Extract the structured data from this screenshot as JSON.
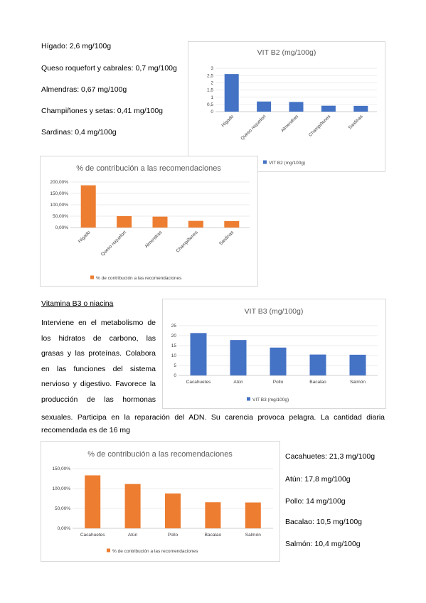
{
  "b2_values": [
    "Hígado: 2,6 mg/100g",
    "Queso roquefort y cabrales: 0,7 mg/100g",
    "Almendras: 0,67 mg/100g",
    "Champiñones y setas: 0,41 mg/100g",
    "Sardinas: 0,4 mg/100g"
  ],
  "b3_heading": "Vitamina B3 o niacina",
  "b3_para1_lines": [
    "Interviene en el metabolismo de",
    "los hidratos de carbono, las",
    "grasas y las proteínas. Colabora",
    "en las funciones del sistema",
    "nervioso y digestivo. Favorece la",
    "producción de las hormonas"
  ],
  "b3_para2_line1": "sexuales. Participa en la reparación del ADN. Su carencia provoca pelagra. La cantidad diaria",
  "b3_para2_line2": "recomendada es de 16 mg",
  "b3_values": [
    "Cacahuetes: 21,3 mg/100g",
    "Atún: 17,8 mg/100g",
    "Pollo: 14 mg/100g",
    "Bacalao: 10,5 mg/100g",
    "Salmón: 10,4 mg/100g"
  ],
  "chart_data": [
    {
      "type": "bar",
      "title": "VIT B2 (mg/100g)",
      "categories": [
        "Hígado",
        "Queso roquefort",
        "Almendras",
        "Champiñones",
        "Sardinas"
      ],
      "series": [
        {
          "name": "VIT B2 (mg/100g)",
          "values": [
            2.6,
            0.7,
            0.67,
            0.41,
            0.4
          ]
        }
      ],
      "ylim": [
        0,
        3
      ],
      "yticks": [
        "0",
        "0,5",
        "1",
        "1,5",
        "2",
        "2,5",
        "3"
      ],
      "color": "#4472c4",
      "legend": "bottom"
    },
    {
      "type": "bar",
      "title": "% de contribución a las recomendaciones",
      "categories": [
        "Hígado",
        "Queso roquefort",
        "Almendras",
        "Champiñones",
        "Sardinas"
      ],
      "series": [
        {
          "name": "% de contribución a las recomendaciones",
          "values": [
            185.7,
            50,
            47.9,
            29.3,
            28.6
          ]
        }
      ],
      "ylim": [
        0,
        200
      ],
      "yticks": [
        "0,00%",
        "50,00%",
        "100,00%",
        "150,00%",
        "200,00%"
      ],
      "color": "#ed7d31",
      "legend": "bottom"
    },
    {
      "type": "bar",
      "title": "VIT B3 (mg/100g)",
      "categories": [
        "Cacahuetes",
        "Atún",
        "Pollo",
        "Bacalao",
        "Salmón"
      ],
      "series": [
        {
          "name": "VIT B3 (mg/100g)",
          "values": [
            21.3,
            17.8,
            14,
            10.5,
            10.4
          ]
        }
      ],
      "ylim": [
        0,
        25
      ],
      "yticks": [
        "0",
        "5",
        "10",
        "15",
        "20",
        "25"
      ],
      "color": "#4472c4",
      "legend": "bottom"
    },
    {
      "type": "bar",
      "title": "% de contribución a las recomendaciones",
      "categories": [
        "Cacahuetes",
        "Atún",
        "Pollo",
        "Bacalao",
        "Salmón"
      ],
      "series": [
        {
          "name": "% de contribución a las recomendaciones",
          "values": [
            133.1,
            111.3,
            87.5,
            65.6,
            65
          ]
        }
      ],
      "ylim": [
        0,
        150
      ],
      "yticks": [
        "0,00%",
        "50,00%",
        "100,00%",
        "150,00%"
      ],
      "color": "#ed7d31",
      "legend": "bottom"
    }
  ]
}
